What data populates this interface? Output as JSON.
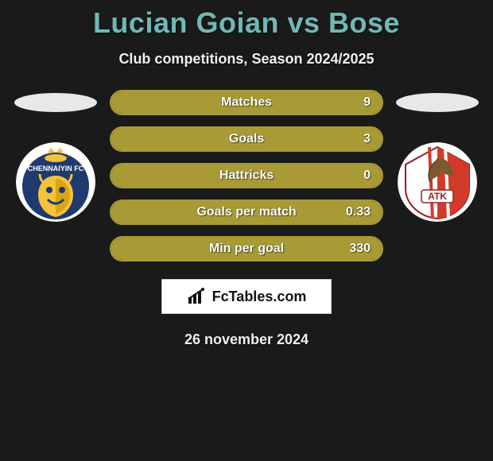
{
  "title": "Lucian Goian vs Bose",
  "subtitle": "Club competitions, Season 2024/2025",
  "date": "26 november 2024",
  "brand": "FcTables.com",
  "colors": {
    "title": "#6fb8b8",
    "text_light": "#f0f0f0",
    "bar_border": "#a89b36",
    "bar_fill": "#a89b36",
    "background": "#1a1a1a",
    "ellipse": "#e8e8e8"
  },
  "stats": [
    {
      "label": "Matches",
      "value": "9",
      "fill_pct": 100
    },
    {
      "label": "Goals",
      "value": "3",
      "fill_pct": 100
    },
    {
      "label": "Hattricks",
      "value": "0",
      "fill_pct": 100
    },
    {
      "label": "Goals per match",
      "value": "0.33",
      "fill_pct": 100
    },
    {
      "label": "Min per goal",
      "value": "330",
      "fill_pct": 100
    }
  ],
  "left_club": {
    "name": "Chennaiyin FC",
    "badge_bg": "#ffffff",
    "inner_bg": "#1f3a6e",
    "accent": "#f2c33c"
  },
  "right_club": {
    "name": "ATK",
    "badge_bg": "#ffffff",
    "stripe1": "#d23b2a",
    "stripe2": "#ffffff",
    "eagle": "#7a5a2e"
  }
}
